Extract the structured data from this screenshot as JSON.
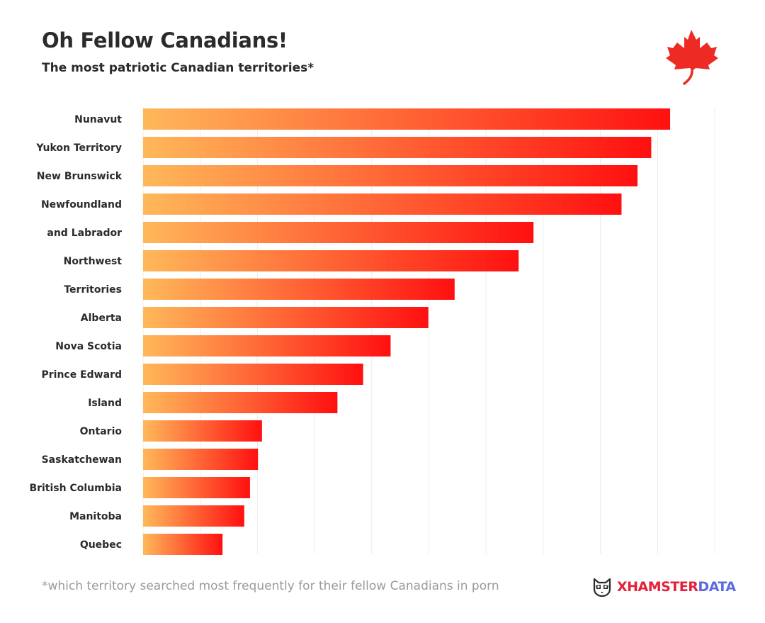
{
  "header": {
    "title": "Oh Fellow Canadians!",
    "subtitle": "The most patriotic Canadian territories*"
  },
  "footer": {
    "footnote": "*which territory searched most frequently for their fellow Canadians in porn",
    "brand_primary": "XHAMSTER",
    "brand_secondary": "DATA"
  },
  "icons": {
    "header_icon": "maple-leaf-icon",
    "brand_icon": "raccoon-mascot-icon"
  },
  "colors": {
    "leaf": "#ee2a24",
    "bar_start": "#ffb85a",
    "bar_end": "#ff1010",
    "brand_x": "#e5203a",
    "brand_data": "#5b6be0",
    "grid": "#ececec"
  },
  "chart_data": {
    "type": "bar",
    "orientation": "horizontal",
    "title": "Oh Fellow Canadians!",
    "subtitle": "The most patriotic Canadian territories*",
    "categories": [
      "Nunavut",
      "Yukon Territory",
      "New Brunswick",
      "Newfoundland",
      "and Labrador",
      "Northwest",
      "Territories",
      "Alberta",
      "Nova Scotia",
      "Prince Edward",
      "Island",
      "Ontario",
      "Saskatchewan",
      "British Columbia",
      "Manitoba",
      "Quebec"
    ],
    "values": [
      92.2,
      88.9,
      86.5,
      83.7,
      68.3,
      65.7,
      54.5,
      49.9,
      43.3,
      38.5,
      34.0,
      20.8,
      20.1,
      18.7,
      17.7,
      13.9
    ],
    "xlim": [
      0,
      100
    ],
    "grid": true,
    "grid_step": 10,
    "value_labels_shown": false
  }
}
